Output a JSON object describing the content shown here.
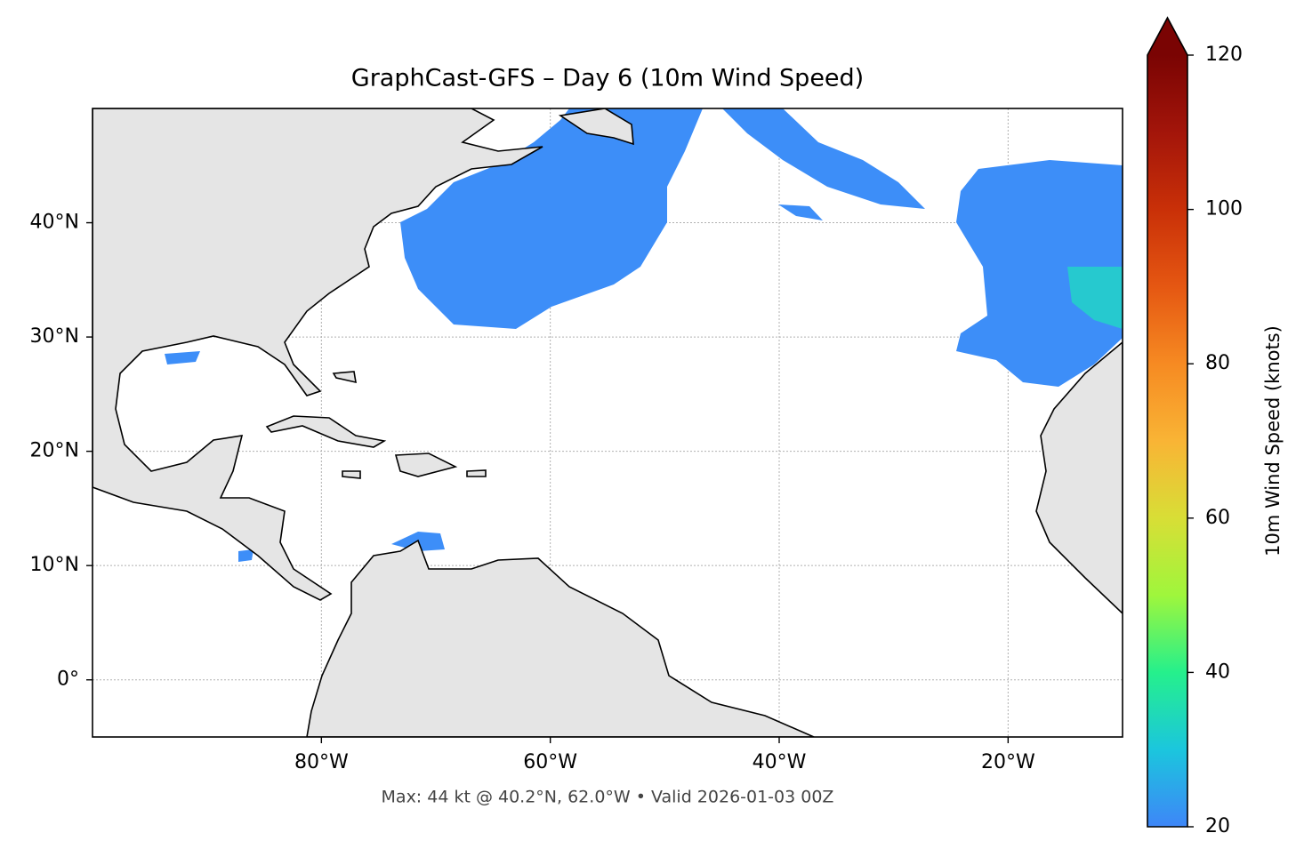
{
  "chart_data": {
    "type": "map",
    "title": "GraphCast-GFS – Day 6 (10m Wind Speed)",
    "caption": "Max: 44 kt @ 40.2°N, 62.0°W • Valid 2026-01-03 00Z",
    "xlim": [
      -100,
      -10
    ],
    "ylim": [
      -5,
      50
    ],
    "xticks": [
      {
        "value": -80,
        "label": "80°W"
      },
      {
        "value": -60,
        "label": "60°W"
      },
      {
        "value": -40,
        "label": "40°W"
      },
      {
        "value": -20,
        "label": "20°W"
      }
    ],
    "yticks": [
      {
        "value": 0,
        "label": "0°"
      },
      {
        "value": 10,
        "label": "10°N"
      },
      {
        "value": 20,
        "label": "20°N"
      },
      {
        "value": 30,
        "label": "30°N"
      },
      {
        "value": 40,
        "label": "40°N"
      }
    ],
    "grid": true,
    "colorbar": {
      "label": "10m Wind Speed (knots)",
      "lim": [
        20,
        120
      ],
      "ticks": [
        20,
        40,
        60,
        80,
        100,
        120
      ]
    }
  }
}
